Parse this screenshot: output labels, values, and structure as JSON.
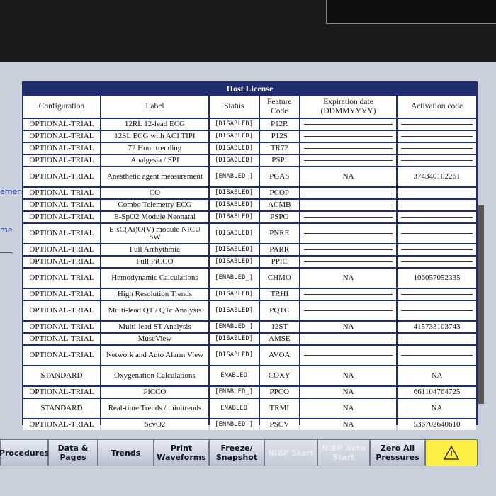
{
  "header": {
    "title": "Host License"
  },
  "columns": [
    "Configuration",
    "Label",
    "Status",
    "Feature Code",
    "Expiration date (DDMMYYYY)",
    "Activation code"
  ],
  "side_labels": [
    "ement",
    "me"
  ],
  "rows": [
    {
      "configuration": "OPTIONAL-TRIAL",
      "label": "12RL 12-lead ECG",
      "status": "[DISABLED]",
      "code": "P12R"
    },
    {
      "configuration": "OPTIONAL-TRIAL",
      "label": "12SL ECG with ACI TIPI",
      "status": "[DISABLED]",
      "code": "P12S"
    },
    {
      "configuration": "OPTIONAL-TRIAL",
      "label": "72 Hour trending",
      "status": "[DISABLED]",
      "code": "TR72"
    },
    {
      "configuration": "OPTIONAL-TRIAL",
      "label": "Analgesia / SPI",
      "status": "[DISABLED]",
      "code": "PSPI"
    },
    {
      "configuration": "OPTIONAL-TRIAL",
      "label": "Anesthetic agent measurement",
      "status": "[ENABLED_]",
      "code": "PGAS",
      "expiration": "NA",
      "activation": "374340102261"
    },
    {
      "configuration": "OPTIONAL-TRIAL",
      "label": "CO",
      "status": "[DISABLED]",
      "code": "PCOP"
    },
    {
      "configuration": "OPTIONAL-TRIAL",
      "label": "Combo Telemetry ECG",
      "status": "[DISABLED]",
      "code": "ACMB"
    },
    {
      "configuration": "OPTIONAL-TRIAL",
      "label": "E-SpO2 Module Neonatal",
      "status": "[DISABLED]",
      "code": "PSPO"
    },
    {
      "configuration": "OPTIONAL-TRIAL",
      "label": "E-sC(Ai)O(V) module NICU SW",
      "status": "[DISABLED]",
      "code": "PNRE"
    },
    {
      "configuration": "OPTIONAL-TRIAL",
      "label": "Full Arrhythmia",
      "status": "[DISABLED]",
      "code": "PARR"
    },
    {
      "configuration": "OPTIONAL-TRIAL",
      "label": "Full PiCCO",
      "status": "[DISABLED]",
      "code": "PPIC"
    },
    {
      "configuration": "OPTIONAL-TRIAL",
      "label": "Hemodynamic Calculations",
      "status": "[ENABLED_]",
      "code": "CHMO",
      "expiration": "NA",
      "activation": "106057052335"
    },
    {
      "configuration": "OPTIONAL-TRIAL",
      "label": "High Resolution Trends",
      "status": "[DISABLED]",
      "code": "TRHI"
    },
    {
      "configuration": "OPTIONAL-TRIAL",
      "label": "Multi-lead QT / QTc Analysis",
      "status": "[DISABLED]",
      "code": "PQTC"
    },
    {
      "configuration": "OPTIONAL-TRIAL",
      "label": "Multi-lead ST Analysis",
      "status": "[ENABLED_]",
      "code": "12ST",
      "expiration": "NA",
      "activation": "415733103743"
    },
    {
      "configuration": "OPTIONAL-TRIAL",
      "label": "MuseView",
      "status": "[DISABLED]",
      "code": "AMSE"
    },
    {
      "configuration": "OPTIONAL-TRIAL",
      "label": "Network and Auto Alarm View",
      "status": "[DISABLED]",
      "code": "AVOA"
    },
    {
      "configuration": "STANDARD",
      "label": "Oxygenation Calculations",
      "status": "ENABLED",
      "code": "COXY",
      "expiration": "NA",
      "activation": "NA"
    },
    {
      "configuration": "OPTIONAL-TRIAL",
      "label": "PiCCO",
      "status": "[ENABLED_]",
      "code": "PPCO",
      "expiration": "NA",
      "activation": "661104764725"
    },
    {
      "configuration": "STANDARD",
      "label": "Real-time Trends / minitrends",
      "status": "ENABLED",
      "code": "TRMI",
      "expiration": "NA",
      "activation": "NA"
    },
    {
      "configuration": "OPTIONAL-TRIAL",
      "label": "ScvO2",
      "status": "[ENABLED_]",
      "code": "PSCV",
      "expiration": "NA",
      "activation": "536702640610"
    }
  ],
  "buttons": [
    "Procedures",
    "Data & Pages",
    "Trends",
    "Print Waveforms",
    "Freeze/ Snapshot",
    "NIBP Start",
    "NIBP Auto Start",
    "Zero All Pressures"
  ],
  "disabled_buttons": [
    "NIBP Start",
    "NIBP Auto Start"
  ]
}
